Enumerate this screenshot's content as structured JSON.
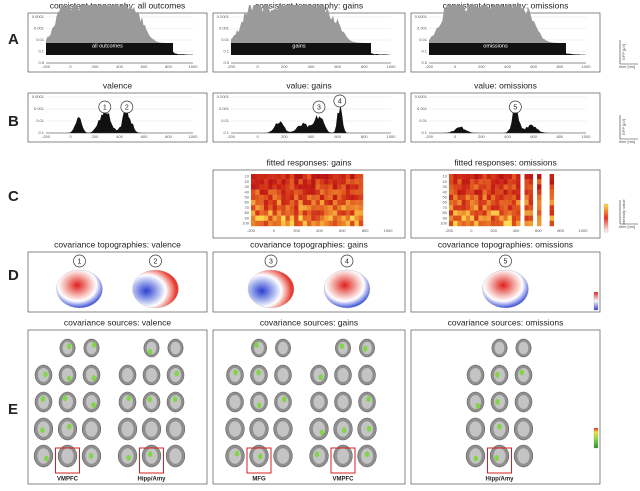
{
  "rows": [
    {
      "letter": "A",
      "panels": [
        {
          "title": "consistent topography: all outcomes",
          "label": "all outcomes"
        },
        {
          "title": "consistent topography: gains",
          "label": "gains"
        },
        {
          "title": "consistent topography: omissions",
          "label": "omissions"
        }
      ]
    },
    {
      "letter": "B",
      "panels": [
        {
          "title": "valence",
          "markers": [
            "1",
            "2"
          ]
        },
        {
          "title": "value: gains",
          "markers": [
            "3",
            "4"
          ]
        },
        {
          "title": "value: omissions",
          "markers": [
            "5"
          ]
        }
      ]
    },
    {
      "letter": "C",
      "panels": [
        {
          "title": "fitted responses: gains"
        },
        {
          "title": "fitted responses: omissions"
        }
      ]
    },
    {
      "letter": "D",
      "panels": [
        {
          "title": "covariance topographies: valence",
          "markers": [
            "1",
            "2"
          ]
        },
        {
          "title": "covariance topographies: gains",
          "markers": [
            "3",
            "4"
          ]
        },
        {
          "title": "covariance topographies: omissions",
          "markers": [
            "5"
          ]
        }
      ]
    },
    {
      "letter": "E",
      "panels": [
        {
          "title": "covariance sources: valence",
          "labels": [
            "VMPFC",
            "Hipp/Amy"
          ]
        },
        {
          "title": "covariance sources: gains",
          "labels": [
            "MFG",
            "VMPFC"
          ]
        },
        {
          "title": "covariance sources: omissions",
          "labels": [
            "Hipp/Amy"
          ]
        }
      ]
    }
  ],
  "time_ticks": [
    "-200",
    "0",
    "200",
    "400",
    "600",
    "800",
    "1000"
  ],
  "log_ticks": [
    "0.0001",
    "0.001",
    "0.01",
    "0.1",
    "0.5"
  ],
  "level_ticks": [
    "10",
    "20",
    "30",
    "40",
    "50",
    "60",
    "70",
    "80",
    "90",
    "100"
  ],
  "scale_labels": {
    "time": "time [ms]",
    "gfp": "GFP [μV]",
    "intensity": "intensity value"
  }
}
